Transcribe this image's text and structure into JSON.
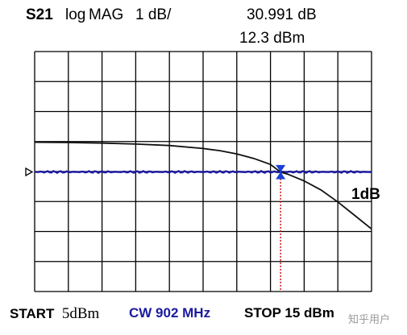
{
  "header": {
    "parameter": "S21",
    "format": "log",
    "mode": "MAG",
    "scale": "1 dB/",
    "marker_value": "30.991 dB",
    "marker_power": "12.3 dBm"
  },
  "footer": {
    "start_label": "START",
    "start_value": "5dBm",
    "cw_label": "CW 902 MHz",
    "stop_label": "STOP 15 dBm"
  },
  "annotation": {
    "delta_label": "1dB"
  },
  "watermark": "知乎用户",
  "colors": {
    "grid": "#000000",
    "trace_reference": "#1a1aa0",
    "trace_measured": "#111111",
    "marker_arrow": "#1a3fd6",
    "marker_line": "#cc0000"
  },
  "chart_data": {
    "type": "line",
    "x_unit": "dBm",
    "xlim": [
      5,
      15
    ],
    "y_scale_db_per_div": 1,
    "reference_y": 31,
    "divisions": {
      "x": 10,
      "y": 8
    },
    "grid": true,
    "series": [
      {
        "x": [
          5,
          6,
          7,
          8,
          9,
          10,
          10.5,
          11,
          11.5,
          12,
          12.3,
          12.5,
          13,
          13.5,
          14,
          14.5,
          15
        ],
        "y": [
          31,
          31,
          31,
          31,
          31,
          31,
          31,
          31,
          31,
          31,
          31,
          31,
          31,
          31,
          31,
          31,
          31
        ]
      },
      {
        "x": [
          5,
          6,
          7,
          8,
          9,
          10,
          10.5,
          11,
          11.5,
          12,
          12.3,
          12.5,
          13,
          13.5,
          14,
          14.5,
          15
        ],
        "y": [
          31.99,
          31.98,
          31.96,
          31.93,
          31.88,
          31.78,
          31.71,
          31.6,
          31.45,
          31.25,
          30.991,
          30.93,
          30.7,
          30.4,
          30.0,
          29.55,
          29.1
        ]
      }
    ],
    "marker": {
      "x": 12.3,
      "y": 30.991
    },
    "annotations": [
      "1dB"
    ]
  }
}
